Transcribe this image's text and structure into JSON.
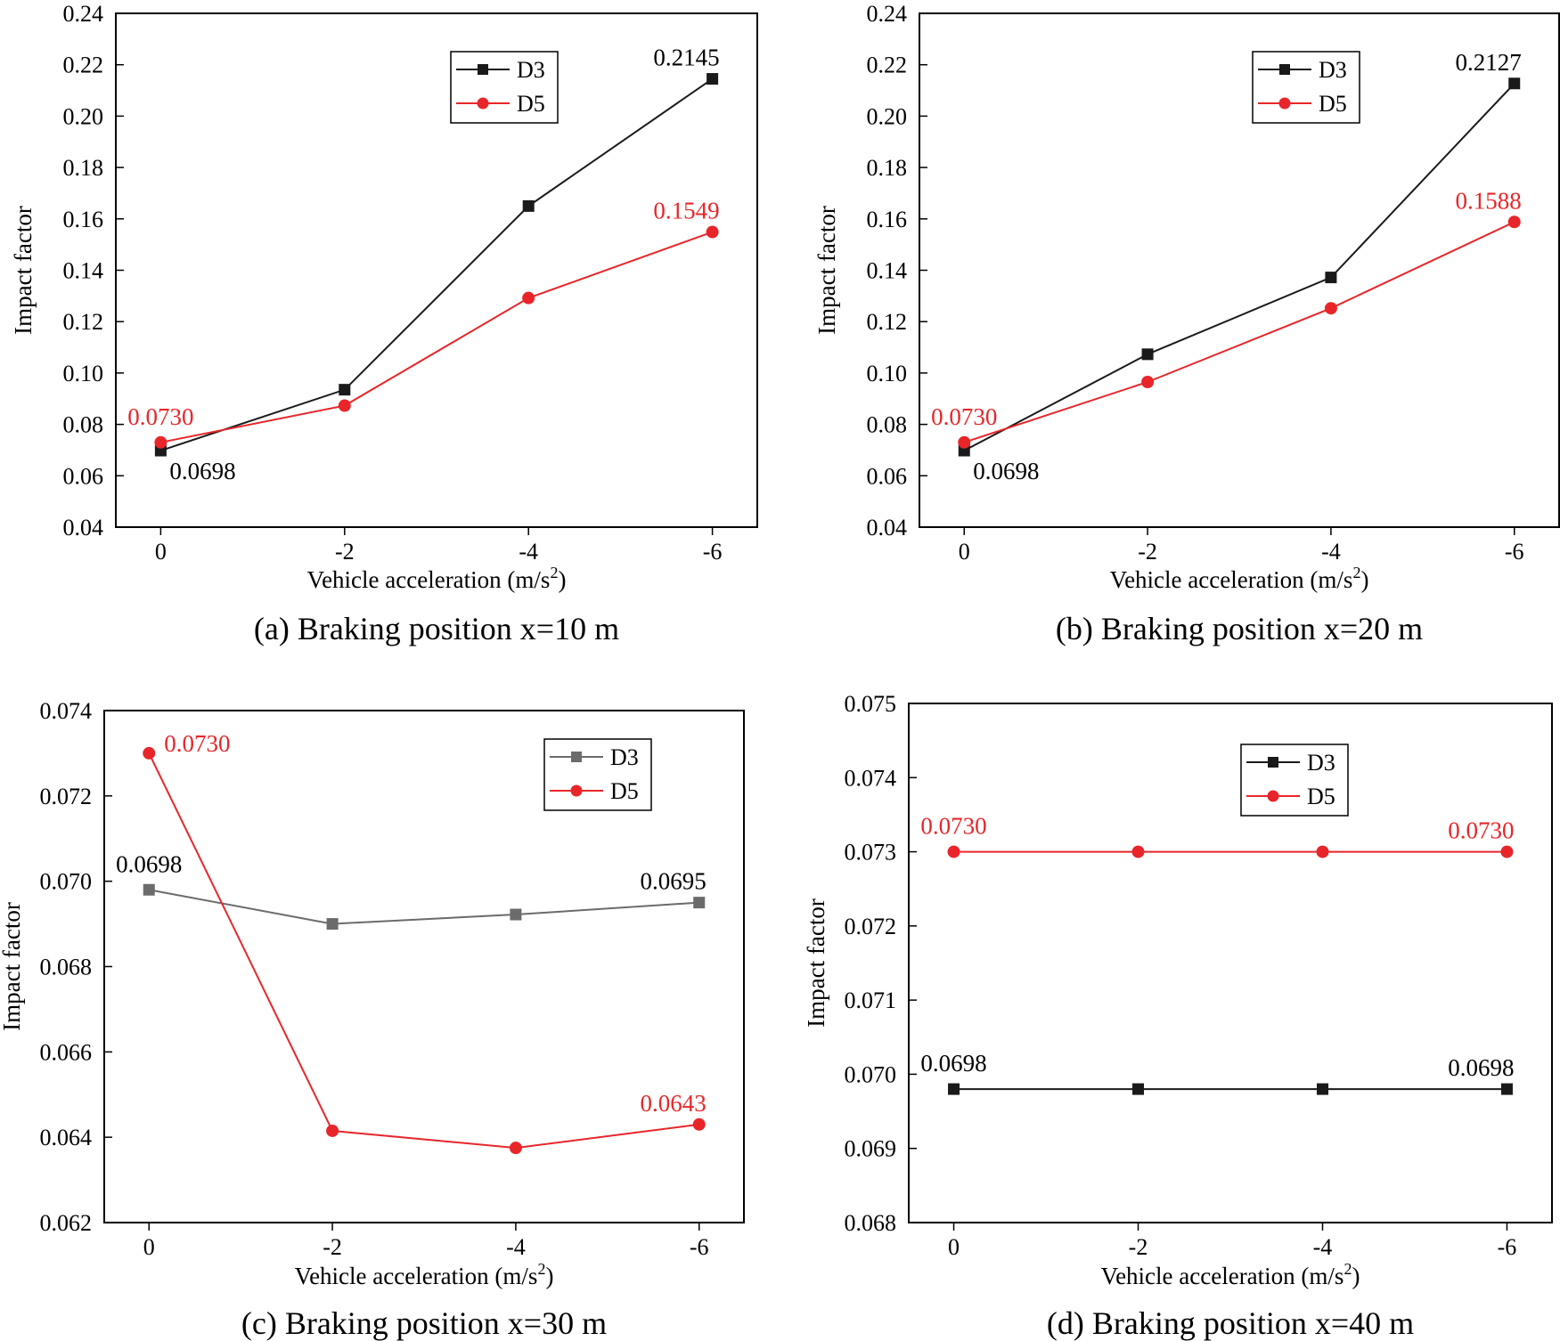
{
  "chart_data": [
    {
      "type": "line",
      "panel": "a",
      "caption": "(a) Braking position x=10 m",
      "xlabel": "Vehicle acceleration (m/s",
      "xlabel_sup": "2",
      "xlabel_close": ")",
      "ylabel": "Impact factor",
      "categories": [
        "0",
        "-2",
        "-4",
        "-6"
      ],
      "ylim": [
        0.04,
        0.24
      ],
      "yticks": [
        0.04,
        0.06,
        0.08,
        0.1,
        0.12,
        0.14,
        0.16,
        0.18,
        0.2,
        0.22,
        0.24
      ],
      "ytick_decimals": 2,
      "legend_position": "top-right",
      "series": [
        {
          "name": "D3",
          "color": "#1a1a1a",
          "marker": "square",
          "values": [
            0.0698,
            0.0935,
            0.165,
            0.2145
          ]
        },
        {
          "name": "D5",
          "color": "#e8262a",
          "marker": "circle",
          "values": [
            0.073,
            0.0873,
            0.1292,
            0.1549
          ]
        }
      ],
      "annotations": [
        {
          "series": 1,
          "index": 0,
          "text": "0.0730",
          "place": "above"
        },
        {
          "series": 0,
          "index": 0,
          "text": "0.0698",
          "place": "below-right"
        },
        {
          "series": 0,
          "index": 3,
          "text": "0.2145",
          "place": "above-left"
        },
        {
          "series": 1,
          "index": 3,
          "text": "0.1549",
          "place": "above-left"
        }
      ]
    },
    {
      "type": "line",
      "panel": "b",
      "caption": "(b) Braking position x=20 m",
      "xlabel": "Vehicle acceleration (m/s",
      "xlabel_sup": "2",
      "xlabel_close": ")",
      "ylabel": "Impact factor",
      "categories": [
        "0",
        "-2",
        "-4",
        "-6"
      ],
      "ylim": [
        0.04,
        0.24
      ],
      "yticks": [
        0.04,
        0.06,
        0.08,
        0.1,
        0.12,
        0.14,
        0.16,
        0.18,
        0.2,
        0.22,
        0.24
      ],
      "ytick_decimals": 2,
      "legend_position": "top-right",
      "series": [
        {
          "name": "D3",
          "color": "#1a1a1a",
          "marker": "square",
          "values": [
            0.0698,
            0.1073,
            0.1372,
            0.2127
          ]
        },
        {
          "name": "D5",
          "color": "#e8262a",
          "marker": "circle",
          "values": [
            0.073,
            0.0965,
            0.1252,
            0.1588
          ]
        }
      ],
      "annotations": [
        {
          "series": 1,
          "index": 0,
          "text": "0.0730",
          "place": "above"
        },
        {
          "series": 0,
          "index": 0,
          "text": "0.0698",
          "place": "below-right"
        },
        {
          "series": 0,
          "index": 3,
          "text": "0.2127",
          "place": "above-left"
        },
        {
          "series": 1,
          "index": 3,
          "text": "0.1588",
          "place": "above-left"
        }
      ]
    },
    {
      "type": "line",
      "panel": "c",
      "caption": "(c) Braking position x=30 m",
      "xlabel": "Vehicle acceleration (m/s",
      "xlabel_sup": "2",
      "xlabel_close": ")",
      "ylabel": "Impact factor",
      "categories": [
        "0",
        "-2",
        "-4",
        "-6"
      ],
      "ylim": [
        0.062,
        0.074
      ],
      "yticks": [
        0.062,
        0.064,
        0.066,
        0.068,
        0.07,
        0.072,
        0.074
      ],
      "ytick_decimals": 3,
      "legend_position": "top-right",
      "series": [
        {
          "name": "D3",
          "color": "#6b6b6b",
          "marker": "square",
          "values": [
            0.0698,
            0.069,
            0.06922,
            0.0695
          ]
        },
        {
          "name": "D5",
          "color": "#e8262a",
          "marker": "circle",
          "values": [
            0.073,
            0.06415,
            0.06375,
            0.0643
          ]
        }
      ],
      "annotations": [
        {
          "series": 1,
          "index": 0,
          "text": "0.0730",
          "place": "right"
        },
        {
          "series": 0,
          "index": 0,
          "text": "0.0698",
          "place": "above"
        },
        {
          "series": 0,
          "index": 3,
          "text": "0.0695",
          "place": "above-left"
        },
        {
          "series": 1,
          "index": 3,
          "text": "0.0643",
          "place": "above-left"
        }
      ]
    },
    {
      "type": "line",
      "panel": "d",
      "caption": "(d) Braking position x=40 m",
      "xlabel": "Vehicle acceleration (m/s",
      "xlabel_sup": "2",
      "xlabel_close": ")",
      "ylabel": "Impact factor",
      "categories": [
        "0",
        "-2",
        "-4",
        "-6"
      ],
      "ylim": [
        0.068,
        0.075
      ],
      "yticks": [
        0.068,
        0.069,
        0.07,
        0.071,
        0.072,
        0.073,
        0.074,
        0.075
      ],
      "ytick_decimals": 3,
      "legend_position": "top-center",
      "series": [
        {
          "name": "D3",
          "color": "#1a1a1a",
          "marker": "square",
          "values": [
            0.0698,
            0.0698,
            0.0698,
            0.0698
          ]
        },
        {
          "name": "D5",
          "color": "#e8262a",
          "marker": "circle",
          "values": [
            0.073,
            0.073,
            0.073,
            0.073
          ]
        }
      ],
      "annotations": [
        {
          "series": 1,
          "index": 0,
          "text": "0.0730",
          "place": "above"
        },
        {
          "series": 1,
          "index": 3,
          "text": "0.0730",
          "place": "above-left"
        },
        {
          "series": 0,
          "index": 0,
          "text": "0.0698",
          "place": "above"
        },
        {
          "series": 0,
          "index": 3,
          "text": "0.0698",
          "place": "above-left"
        }
      ]
    }
  ]
}
